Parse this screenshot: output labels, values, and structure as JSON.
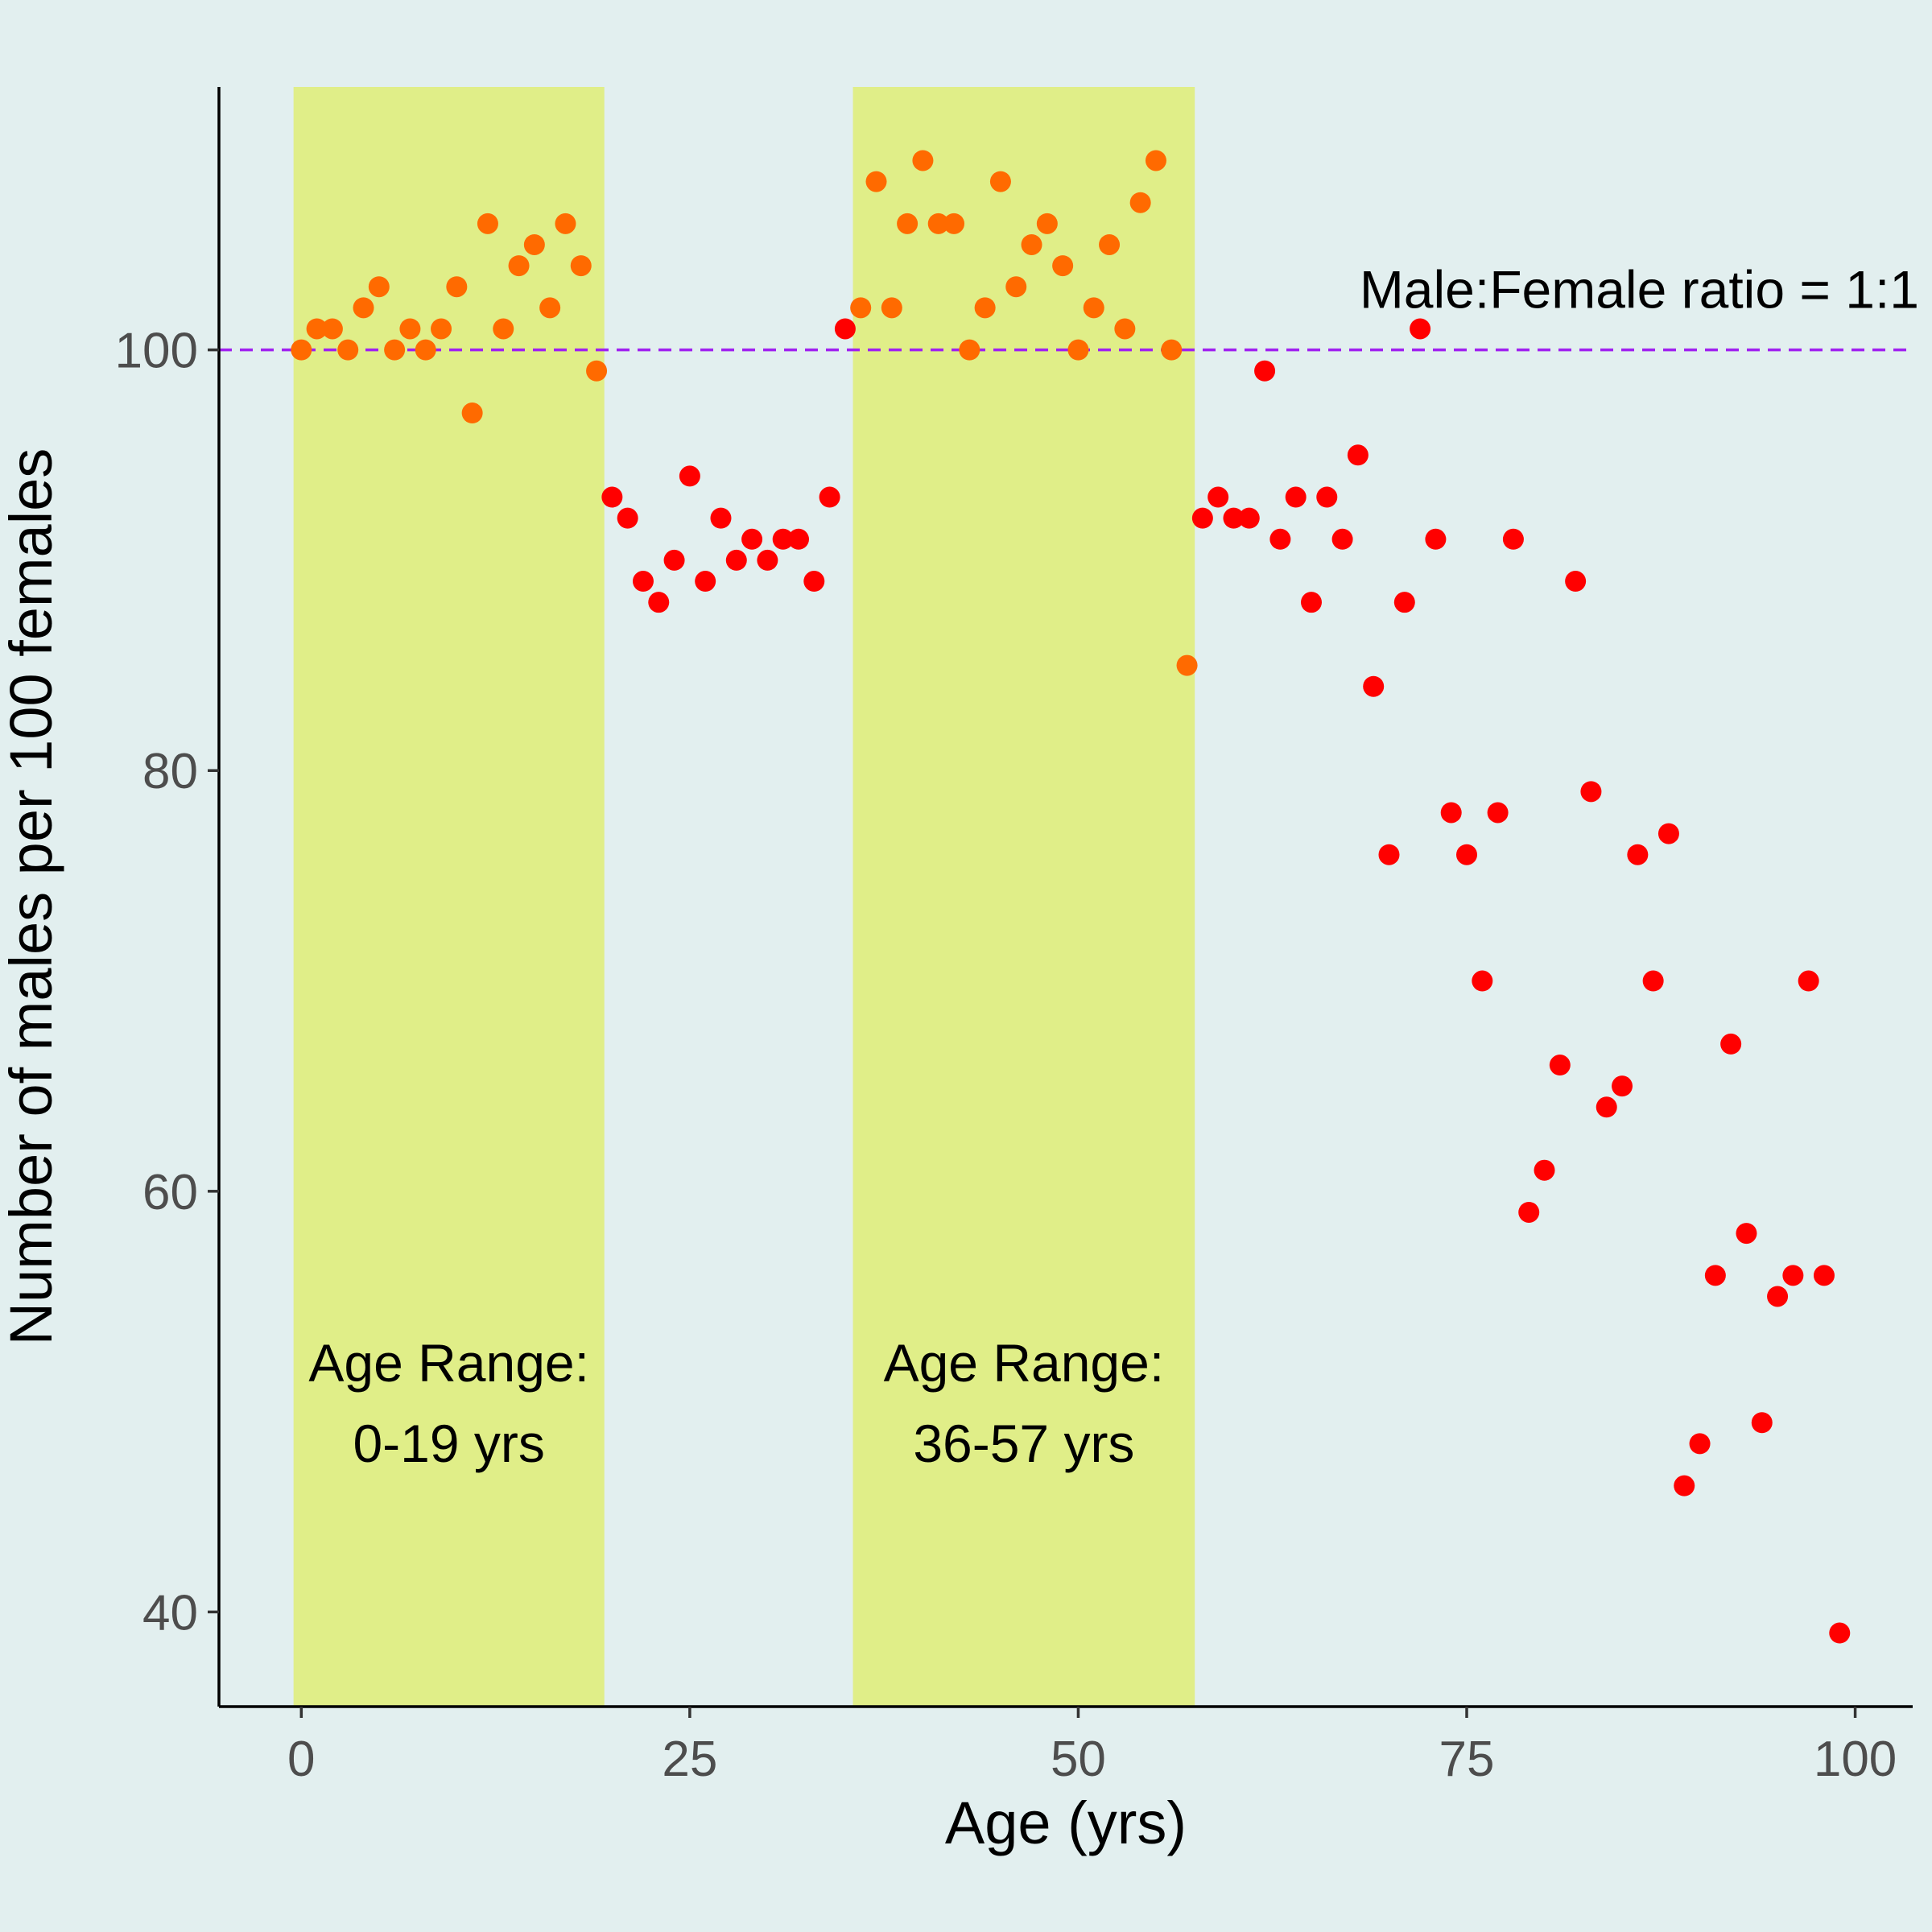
{
  "chart_data": {
    "type": "scatter",
    "title": "",
    "xlabel": "Age (yrs)",
    "ylabel": "Number of males per 100 females",
    "xlim": [
      -5.3,
      103.7
    ],
    "ylim": [
      35.5,
      112.5
    ],
    "x_ticks": [
      0,
      25,
      50,
      75,
      100
    ],
    "y_ticks": [
      40,
      60,
      80,
      100
    ],
    "grid": false,
    "legend": "none",
    "reference_line": {
      "y": 100,
      "label": "Male:Female ratio = 1:1",
      "color": "#a020f0",
      "style": "dashed"
    },
    "highlight_ranges": [
      {
        "x0": -0.5,
        "x1": 19.5,
        "label_line1": "Age Range:",
        "label_line2": "0-19 yrs",
        "label_x": 9.5,
        "color": "#e0ee88"
      },
      {
        "x0": 35.5,
        "x1": 57.5,
        "label_line1": "Age Range:",
        "label_line2": "36-57 yrs",
        "label_x": 46.5,
        "color": "#e0ee88"
      }
    ],
    "colors": {
      "in_range": "#ff6a00",
      "out_of_range": "#ff0000",
      "background": "#e2efef"
    },
    "points": [
      [
        0,
        100
      ],
      [
        1,
        101
      ],
      [
        2,
        101
      ],
      [
        3,
        100
      ],
      [
        4,
        102
      ],
      [
        5,
        103
      ],
      [
        6,
        100
      ],
      [
        7,
        101
      ],
      [
        8,
        100
      ],
      [
        9,
        101
      ],
      [
        10,
        103
      ],
      [
        11,
        97
      ],
      [
        12,
        106
      ],
      [
        13,
        101
      ],
      [
        14,
        104
      ],
      [
        15,
        105
      ],
      [
        16,
        102
      ],
      [
        17,
        106
      ],
      [
        18,
        104
      ],
      [
        19,
        99
      ],
      [
        20,
        93
      ],
      [
        21,
        92
      ],
      [
        22,
        89
      ],
      [
        23,
        88
      ],
      [
        24,
        90
      ],
      [
        25,
        94
      ],
      [
        26,
        89
      ],
      [
        27,
        92
      ],
      [
        28,
        90
      ],
      [
        29,
        91
      ],
      [
        30,
        90
      ],
      [
        31,
        91
      ],
      [
        32,
        91
      ],
      [
        33,
        89
      ],
      [
        34,
        93
      ],
      [
        35,
        101
      ],
      [
        36,
        102
      ],
      [
        37,
        108
      ],
      [
        38,
        102
      ],
      [
        39,
        106
      ],
      [
        40,
        109
      ],
      [
        41,
        106
      ],
      [
        42,
        106
      ],
      [
        43,
        100
      ],
      [
        44,
        102
      ],
      [
        45,
        108
      ],
      [
        46,
        103
      ],
      [
        47,
        105
      ],
      [
        48,
        106
      ],
      [
        49,
        104
      ],
      [
        50,
        100
      ],
      [
        51,
        102
      ],
      [
        52,
        105
      ],
      [
        53,
        101
      ],
      [
        54,
        107
      ],
      [
        55,
        109
      ],
      [
        56,
        100
      ],
      [
        57,
        85
      ],
      [
        58,
        92
      ],
      [
        59,
        93
      ],
      [
        60,
        92
      ],
      [
        61,
        92
      ],
      [
        62,
        99
      ],
      [
        63,
        91
      ],
      [
        64,
        93
      ],
      [
        65,
        88
      ],
      [
        66,
        93
      ],
      [
        67,
        91
      ],
      [
        68,
        95
      ],
      [
        69,
        84
      ],
      [
        70,
        76
      ],
      [
        71,
        88
      ],
      [
        72,
        101
      ],
      [
        73,
        91
      ],
      [
        74,
        78
      ],
      [
        75,
        76
      ],
      [
        76,
        70
      ],
      [
        77,
        78
      ],
      [
        78,
        91
      ],
      [
        79,
        59
      ],
      [
        80,
        61
      ],
      [
        81,
        66
      ],
      [
        82,
        89
      ],
      [
        83,
        79
      ],
      [
        84,
        64
      ],
      [
        85,
        65
      ],
      [
        86,
        76
      ],
      [
        87,
        70
      ],
      [
        88,
        77
      ],
      [
        89,
        46
      ],
      [
        90,
        48
      ],
      [
        91,
        56
      ],
      [
        92,
        67
      ],
      [
        93,
        58
      ],
      [
        94,
        49
      ],
      [
        95,
        55
      ],
      [
        96,
        56
      ],
      [
        97,
        70
      ],
      [
        98,
        56
      ],
      [
        99,
        39
      ]
    ]
  }
}
